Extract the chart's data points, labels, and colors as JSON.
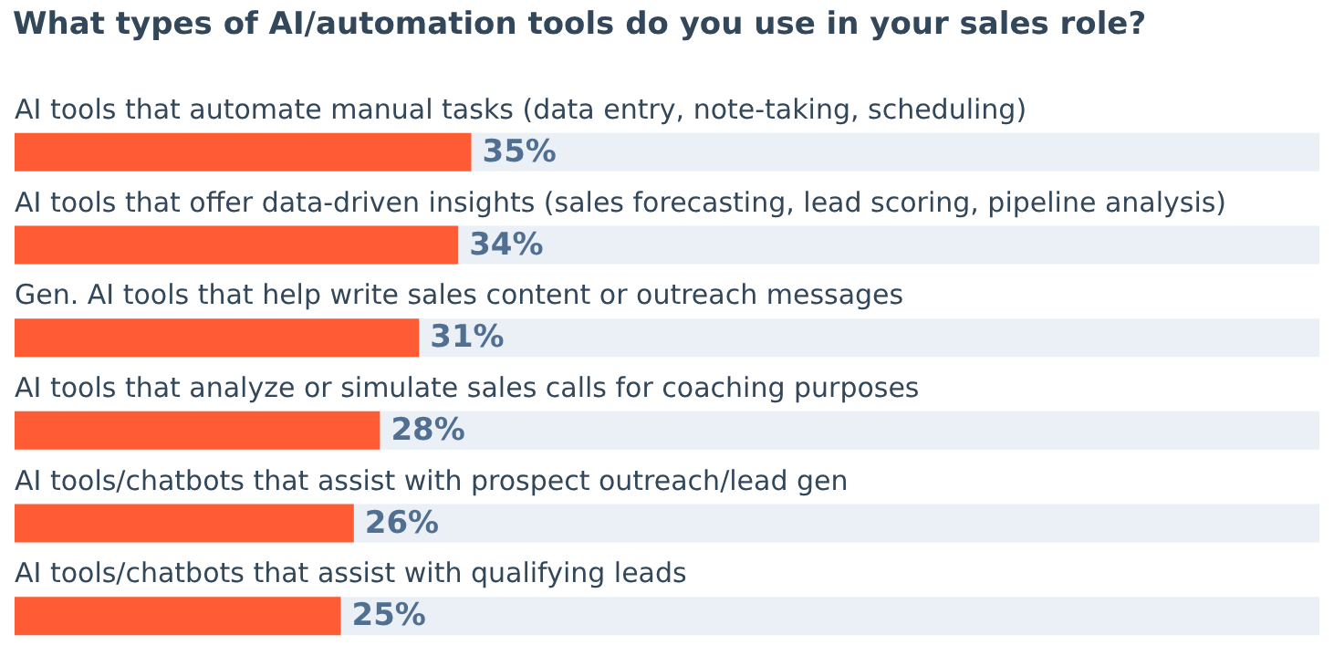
{
  "chart_data": {
    "type": "bar",
    "orientation": "horizontal",
    "title": "What types of AI/automation tools do you use in your sales role?",
    "categories": [
      "AI tools that automate manual tasks (data entry, note-taking, scheduling)",
      "AI tools that offer data-driven insights (sales forecasting, lead scoring, pipeline analysis)",
      "Gen. AI tools that help write sales content or outreach messages",
      "AI tools that analyze or simulate sales calls for coaching purposes",
      "AI tools/chatbots that assist with prospect outreach/lead gen",
      "AI tools/chatbots that assist with qualifying leads"
    ],
    "values": [
      35,
      34,
      31,
      28,
      26,
      25
    ],
    "value_labels": [
      "35%",
      "34%",
      "31%",
      "28%",
      "26%",
      "25%"
    ],
    "color": "#ff5c35",
    "xlim": [
      0,
      100
    ],
    "tick_labels": "y"
  }
}
